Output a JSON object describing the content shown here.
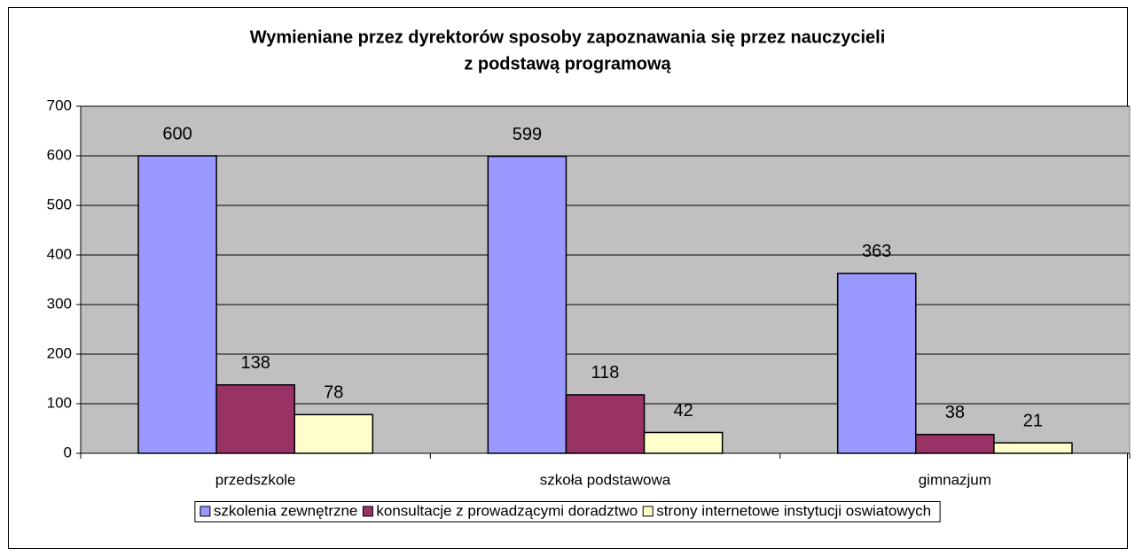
{
  "chart_data": {
    "type": "bar",
    "title": [
      "Wymieniane przez dyrektorów sposoby zapoznawania się przez nauczycieli",
      "z podstawą programową"
    ],
    "categories": [
      "przedszkole",
      "szkoła podstawowa",
      "gimnazjum"
    ],
    "series": [
      {
        "name": "szkolenia zewnętrzne",
        "color": "#9999ff",
        "values": [
          600,
          599,
          363
        ]
      },
      {
        "name": "konsultacje z prowadzącymi doradztwo",
        "color": "#993366",
        "values": [
          138,
          118,
          38
        ]
      },
      {
        "name": "strony internetowe instytucji oswiatowych",
        "color": "#ffffcc",
        "values": [
          78,
          42,
          21
        ]
      }
    ],
    "ylim": [
      0,
      700
    ],
    "yticks": [
      0,
      100,
      200,
      300,
      400,
      500,
      600,
      700
    ],
    "grid": true,
    "legend": "bottom"
  }
}
